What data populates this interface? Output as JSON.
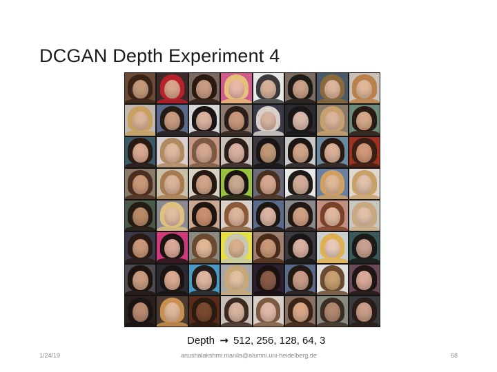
{
  "slide": {
    "title": "DCGAN Depth Experiment 4",
    "caption": {
      "prefix": "Depth",
      "arrow": "→",
      "values": "512, 256, 128, 64, 3"
    },
    "footer": {
      "date": "1/24/19",
      "author_email": "anushalakshmi.manila@alumni.uni-heidelberg.de",
      "page_number": "68"
    }
  },
  "image_grid": {
    "rows": 8,
    "columns": 8,
    "cell_palettes": [
      [
        "#c49a7a",
        "#3a2418",
        "#6b4b38"
      ],
      [
        "#d9a58a",
        "#b8202a",
        "#3c2a2a"
      ],
      [
        "#c79c82",
        "#2a1a12",
        "#7a6a60"
      ],
      [
        "#e8b8a8",
        "#e6c07a",
        "#d05a8a"
      ],
      [
        "#d6b09a",
        "#3a3a3a",
        "#e8e8e8"
      ],
      [
        "#caa088",
        "#1e1a18",
        "#7a6a60"
      ],
      [
        "#dcb49a",
        "#8a6a3a",
        "#4a5a6a"
      ],
      [
        "#e0b898",
        "#b8804a",
        "#c8c0b8"
      ],
      [
        "#dcb49a",
        "#c8a060",
        "#c0b8b0"
      ],
      [
        "#c89c80",
        "#241a16",
        "#5a6a8a"
      ],
      [
        "#dab2a0",
        "#1a1412",
        "#d8d8d8"
      ],
      [
        "#c9987c",
        "#2a1e18",
        "#8a7a70"
      ],
      [
        "#d8b4a0",
        "#d8d0c8",
        "#3a3a4a"
      ],
      [
        "#d8b8aa",
        "#1a1616",
        "#2a2a30"
      ],
      [
        "#dcb49a",
        "#c8a070",
        "#8a7a6a"
      ],
      [
        "#d4a888",
        "#2a1a14",
        "#6a8a7a"
      ],
      [
        "#d8a890",
        "#2a1a14",
        "#3a5a6a"
      ],
      [
        "#e0b8a0",
        "#b08a60",
        "#d8d0d0"
      ],
      [
        "#d4a890",
        "#7a5a40",
        "#c89888"
      ],
      [
        "#d8b0a0",
        "#2a1c18",
        "#c8c0b8"
      ],
      [
        "#c09878",
        "#1a1414",
        "#3a3a40"
      ],
      [
        "#d0a488",
        "#1e1612",
        "#c8c8c8"
      ],
      [
        "#d8b098",
        "#2a1a14",
        "#6a8aa0"
      ],
      [
        "#d09878",
        "#3a2014",
        "#a03020"
      ],
      [
        "#c89878",
        "#4a2e20",
        "#8a7a6a"
      ],
      [
        "#dab49a",
        "#a87a50",
        "#c8c0a8"
      ],
      [
        "#d0a488",
        "#241812",
        "#d8d0c0"
      ],
      [
        "#c8a890",
        "#1a1410",
        "#9ac040"
      ],
      [
        "#d4a890",
        "#4a3020",
        "#6a6a7a"
      ],
      [
        "#d0ac98",
        "#1e1a18",
        "#e8e8e8"
      ],
      [
        "#e0b898",
        "#d0a060",
        "#6a80a0"
      ],
      [
        "#e0c0a8",
        "#c8a068",
        "#e0d8d0"
      ],
      [
        "#b88a68",
        "#241a14",
        "#4a5a4a"
      ],
      [
        "#e0bca0",
        "#e0c080",
        "#8a8a90"
      ],
      [
        "#c89070",
        "#1e1410",
        "#c8a890"
      ],
      [
        "#dcb49c",
        "#8a5a38",
        "#d8d0c8"
      ],
      [
        "#d8b4a0",
        "#1e1612",
        "#5a6a8a"
      ],
      [
        "#d0a084",
        "#241812",
        "#8a8a90"
      ],
      [
        "#e0b8a0",
        "#7a4028",
        "#c09080"
      ],
      [
        "#e0c0a8",
        "#c8a880",
        "#c8c8c0"
      ],
      [
        "#c89878",
        "#2a1a14",
        "#3a3a4a"
      ],
      [
        "#d8a898",
        "#1a1412",
        "#d03a7a"
      ],
      [
        "#e0b898",
        "#6a4a30",
        "#8a8a80"
      ],
      [
        "#d8b090",
        "#c8c8b0",
        "#e8e040"
      ],
      [
        "#c89878",
        "#4a2a18",
        "#a08070"
      ],
      [
        "#d8b0a0",
        "#1a1616",
        "#3a3a40"
      ],
      [
        "#e8c8b8",
        "#e0b050",
        "#c8d0d0"
      ],
      [
        "#c8a090",
        "#1a1a18",
        "#3a5a5a"
      ],
      [
        "#c89c80",
        "#1e1410",
        "#4a4a50"
      ],
      [
        "#d8a890",
        "#1a1412",
        "#2a2a30"
      ],
      [
        "#dcb4a0",
        "#241c18",
        "#4a9ac8"
      ],
      [
        "#e0c0a0",
        "#c8a878",
        "#a8a8a8"
      ],
      [
        "#8a5a48",
        "#1a1010",
        "#2a2030"
      ],
      [
        "#c89c88",
        "#241a14",
        "#5a6a8a"
      ],
      [
        "#c8a070",
        "#6a4a30",
        "#e0e0e0"
      ],
      [
        "#d8a898",
        "#1e1612",
        "#6a4a58"
      ],
      [
        "#b88a70",
        "#1a1412",
        "#2a2020"
      ],
      [
        "#e0b898",
        "#c89050",
        "#4a3a30"
      ],
      [
        "#7a4a30",
        "#2a1a10",
        "#5a2a1a"
      ],
      [
        "#d8b4a0",
        "#3a2a20",
        "#c8c0b8"
      ],
      [
        "#e0b8a8",
        "#7a5a40",
        "#d8d0c8"
      ],
      [
        "#d8a888",
        "#3a2418",
        "#8a7060"
      ],
      [
        "#b08870",
        "#3a2e24",
        "#8a8a80"
      ],
      [
        "#c89c88",
        "#2a1c16",
        "#3a3a40"
      ]
    ]
  }
}
